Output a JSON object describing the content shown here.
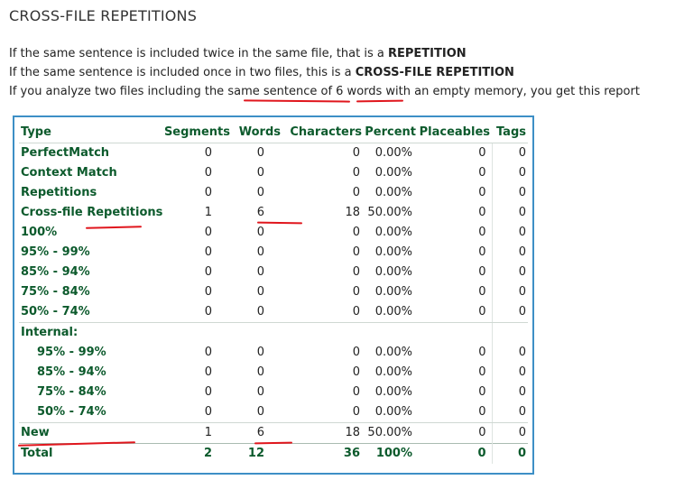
{
  "title": "CROSS-FILE REPETITIONS",
  "para1": {
    "pre": "If the same sentence is included twice in the same file, that is a ",
    "bold": "REPETITION"
  },
  "para2": {
    "pre": "If the same sentence is included once in two files, this is a ",
    "bold": "CROSS-FILE REPETITION"
  },
  "para3": {
    "pre": "If you analyze two files including the ",
    "u1": "same sentence of",
    "mid": " ",
    "u2": "6 words",
    "post": " with an empty memory, you get this report"
  },
  "table": {
    "headers": [
      "Type",
      "Segments",
      "Words",
      "Characters",
      "Percent",
      "Placeables",
      "Tags"
    ],
    "rows": [
      {
        "type": "PerfectMatch",
        "segments": "0",
        "words": "0",
        "chars": "0",
        "percent": "0.00%",
        "placeables": "0",
        "tags": "0"
      },
      {
        "type": "Context Match",
        "segments": "0",
        "words": "0",
        "chars": "0",
        "percent": "0.00%",
        "placeables": "0",
        "tags": "0"
      },
      {
        "type": "Repetitions",
        "segments": "0",
        "words": "0",
        "chars": "0",
        "percent": "0.00%",
        "placeables": "0",
        "tags": "0"
      },
      {
        "type": "Cross-file Repetitions",
        "segments": "1",
        "words": "6",
        "chars": "18",
        "percent": "50.00%",
        "placeables": "0",
        "tags": "0"
      },
      {
        "type": "100%",
        "segments": "0",
        "words": "0",
        "chars": "0",
        "percent": "0.00%",
        "placeables": "0",
        "tags": "0"
      },
      {
        "type": "95% - 99%",
        "segments": "0",
        "words": "0",
        "chars": "0",
        "percent": "0.00%",
        "placeables": "0",
        "tags": "0"
      },
      {
        "type": "85% - 94%",
        "segments": "0",
        "words": "0",
        "chars": "0",
        "percent": "0.00%",
        "placeables": "0",
        "tags": "0"
      },
      {
        "type": "75% - 84%",
        "segments": "0",
        "words": "0",
        "chars": "0",
        "percent": "0.00%",
        "placeables": "0",
        "tags": "0"
      },
      {
        "type": "50% - 74%",
        "segments": "0",
        "words": "0",
        "chars": "0",
        "percent": "0.00%",
        "placeables": "0",
        "tags": "0"
      }
    ],
    "internal_label": "Internal:",
    "internal_rows": [
      {
        "type": "95% - 99%",
        "segments": "0",
        "words": "0",
        "chars": "0",
        "percent": "0.00%",
        "placeables": "0",
        "tags": "0"
      },
      {
        "type": "85% - 94%",
        "segments": "0",
        "words": "0",
        "chars": "0",
        "percent": "0.00%",
        "placeables": "0",
        "tags": "0"
      },
      {
        "type": "75% - 84%",
        "segments": "0",
        "words": "0",
        "chars": "0",
        "percent": "0.00%",
        "placeables": "0",
        "tags": "0"
      },
      {
        "type": "50% - 74%",
        "segments": "0",
        "words": "0",
        "chars": "0",
        "percent": "0.00%",
        "placeables": "0",
        "tags": "0"
      }
    ],
    "new_row": {
      "type": "New",
      "segments": "1",
      "words": "6",
      "chars": "18",
      "percent": "50.00%",
      "placeables": "0",
      "tags": "0"
    },
    "total_row": {
      "type": "Total",
      "segments": "2",
      "words": "12",
      "chars": "36",
      "percent": "100%",
      "placeables": "0",
      "tags": "0"
    }
  },
  "colors": {
    "heading": "#0c5a2c",
    "frame": "#3d8fc6",
    "annotation": "#e0161d"
  }
}
